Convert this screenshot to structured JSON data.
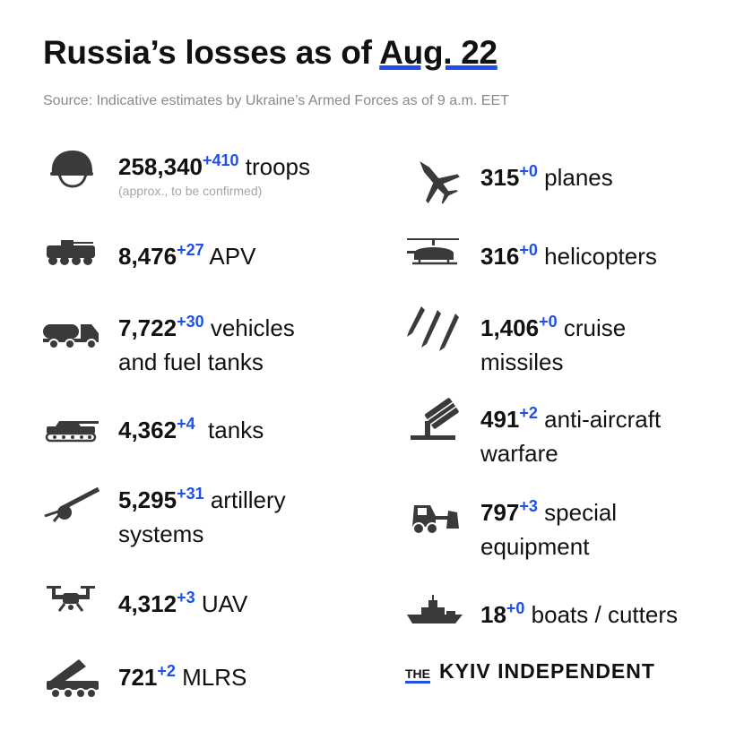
{
  "header": {
    "title_prefix": "Russia’s losses as of ",
    "title_date": "Aug. 22",
    "source": "Source: Indicative estimates by Ukraine’s Armed Forces as of 9 a.m. EET"
  },
  "left": {
    "troops": {
      "icon": "helmet-icon",
      "value": "258,340",
      "delta": "+410",
      "label": " troops",
      "note": "(approx., to be confirmed)"
    },
    "apv": {
      "icon": "apv-icon",
      "value": "8,476",
      "delta": "+27",
      "label": " APV"
    },
    "vehicles": {
      "icon": "fuel-truck-icon",
      "value": "7,722",
      "delta": "+30",
      "label": " vehicles",
      "label2": "and fuel tanks"
    },
    "tanks": {
      "icon": "tank-icon",
      "value": "4,362",
      "delta": "+4",
      "label": "  tanks"
    },
    "artillery": {
      "icon": "artillery-icon",
      "value": "5,295",
      "delta": "+31",
      "label": " artillery",
      "label2": "systems"
    },
    "uav": {
      "icon": "drone-icon",
      "value": "4,312",
      "delta": "+3",
      "label": " UAV"
    },
    "mlrs": {
      "icon": "mlrs-icon",
      "value": "721",
      "delta": "+2",
      "label": " MLRS"
    }
  },
  "right": {
    "planes": {
      "icon": "jet-icon",
      "value": "315",
      "delta": "+0",
      "label": " planes"
    },
    "helicopters": {
      "icon": "helicopter-icon",
      "value": "316",
      "delta": "+0",
      "label": " helicopters"
    },
    "missiles": {
      "icon": "missiles-icon",
      "value": "1,406",
      "delta": "+0",
      "label": " cruise",
      "label2": "missiles"
    },
    "aa": {
      "icon": "anti-aircraft-icon",
      "value": "491",
      "delta": "+2",
      "label": " anti-aircraft",
      "label2": "warfare"
    },
    "special": {
      "icon": "bulldozer-icon",
      "value": "797",
      "delta": "+3",
      "label": " special",
      "label2": "equipment"
    },
    "boats": {
      "icon": "ship-icon",
      "value": "18",
      "delta": "+0",
      "label": " boats / cutters"
    }
  },
  "brand": {
    "the": "THE",
    "name": "KYIV INDEPENDENT"
  },
  "colors": {
    "accent": "#1f4fe6",
    "icon": "#3a3a3a",
    "muted": "#8a8a8a"
  }
}
